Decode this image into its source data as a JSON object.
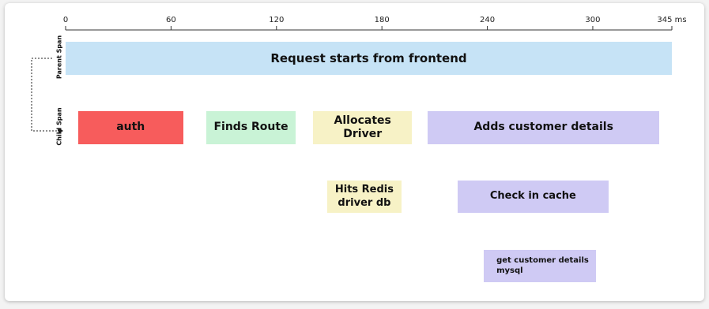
{
  "chart_data": {
    "type": "timeline",
    "xlim": [
      0,
      345
    ],
    "xticks": [
      0,
      60,
      120,
      180,
      240,
      {
        "value": 345,
        "label": "345 ms"
      },
      300
    ],
    "lanes": [
      {
        "label": "Parent Span",
        "spans": [
          {
            "name": "Request starts from frontend",
            "start": 0,
            "end": 345,
            "color": "#c6e3f6"
          }
        ]
      },
      {
        "label": "Child Span",
        "spans": [
          {
            "name": "auth",
            "start": 7,
            "end": 67,
            "color": "#f75c5c"
          },
          {
            "name": "Finds Route",
            "start": 80,
            "end": 131,
            "color": "#c9f3d6"
          },
          {
            "name": "Allocates Driver",
            "start": 141,
            "end": 197,
            "color": "#f7f2c6"
          },
          {
            "name": "Adds customer details",
            "start": 206,
            "end": 338,
            "color": "#cfcaf4"
          }
        ]
      },
      {
        "label": null,
        "spans": [
          {
            "name": "Hits Redis\ndriver db",
            "start": 149,
            "end": 191,
            "color": "#f7f2c6"
          },
          {
            "name": "Check in cache",
            "start": 223,
            "end": 309,
            "color": "#cfcaf4"
          }
        ]
      },
      {
        "label": null,
        "spans": [
          {
            "name": "get customer details\nmysql",
            "start": 238,
            "end": 302,
            "color": "#cfcaf4"
          }
        ]
      }
    ]
  }
}
